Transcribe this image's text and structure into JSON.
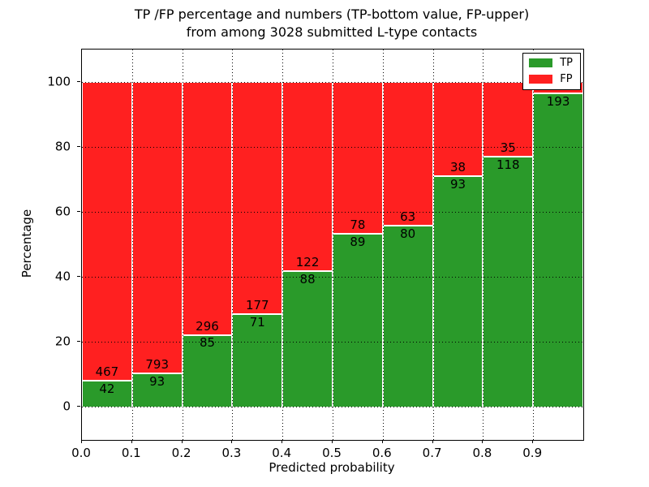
{
  "chart_data": {
    "type": "bar",
    "stacked": true,
    "normalized": "each bin scaled to 100 percent",
    "title": "TP /FP percentage and numbers (TP-bottom value, FP-upper)\nfrom among 3028 submitted L-type contacts",
    "title_line1": "TP /FP percentage and numbers (TP-bottom value, FP-upper)",
    "title_line2": "from among 3028 submitted L-type contacts",
    "xlabel": "Predicted probability",
    "ylabel": "Percentage",
    "xlim": [
      0.0,
      1.0
    ],
    "ylim": [
      -10,
      110
    ],
    "xticks": [
      {
        "value": 0.0,
        "label": "0.0"
      },
      {
        "value": 0.1,
        "label": "0.1"
      },
      {
        "value": 0.2,
        "label": "0.2"
      },
      {
        "value": 0.3,
        "label": "0.3"
      },
      {
        "value": 0.4,
        "label": "0.4"
      },
      {
        "value": 0.5,
        "label": "0.5"
      },
      {
        "value": 0.6,
        "label": "0.6"
      },
      {
        "value": 0.7,
        "label": "0.7"
      },
      {
        "value": 0.8,
        "label": "0.8"
      },
      {
        "value": 0.9,
        "label": "0.9"
      }
    ],
    "yticks": [
      {
        "value": 0,
        "label": "0"
      },
      {
        "value": 20,
        "label": "20"
      },
      {
        "value": 40,
        "label": "40"
      },
      {
        "value": 60,
        "label": "60"
      },
      {
        "value": 80,
        "label": "80"
      },
      {
        "value": 100,
        "label": "100"
      }
    ],
    "grid": {
      "style": "dotted",
      "color": "#000000",
      "drawn_above_bars": true
    },
    "total_submitted": 3028,
    "colors": {
      "tp": "#2a9a2a",
      "fp": "#ff2020",
      "bar_edge": "#ffffff"
    },
    "legend": {
      "position": "upper-right",
      "entries": [
        {
          "label": "TP",
          "color": "#2a9a2a"
        },
        {
          "label": "FP",
          "color": "#ff2020"
        }
      ]
    },
    "bins": [
      {
        "x_range": [
          0.0,
          0.1
        ],
        "tp": 42,
        "fp": 467,
        "fp_label_visible": true
      },
      {
        "x_range": [
          0.1,
          0.2
        ],
        "tp": 93,
        "fp": 793,
        "fp_label_visible": true
      },
      {
        "x_range": [
          0.2,
          0.3
        ],
        "tp": 85,
        "fp": 296,
        "fp_label_visible": true
      },
      {
        "x_range": [
          0.3,
          0.4
        ],
        "tp": 71,
        "fp": 177,
        "fp_label_visible": true
      },
      {
        "x_range": [
          0.4,
          0.5
        ],
        "tp": 88,
        "fp": 122,
        "fp_label_visible": true
      },
      {
        "x_range": [
          0.5,
          0.6
        ],
        "tp": 89,
        "fp": 78,
        "fp_label_visible": true
      },
      {
        "x_range": [
          0.6,
          0.7
        ],
        "tp": 80,
        "fp": 63,
        "fp_label_visible": true
      },
      {
        "x_range": [
          0.7,
          0.8
        ],
        "tp": 93,
        "fp": 38,
        "fp_label_visible": true
      },
      {
        "x_range": [
          0.8,
          0.9
        ],
        "tp": 118,
        "fp": 35,
        "fp_label_visible": true
      },
      {
        "x_range": [
          0.9,
          1.0
        ],
        "tp": 193,
        "fp": 7,
        "fp_label_visible": false
      }
    ]
  }
}
